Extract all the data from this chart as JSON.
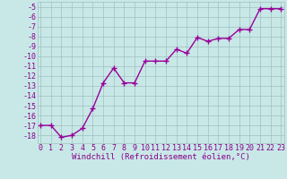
{
  "x": [
    0,
    1,
    2,
    3,
    4,
    5,
    6,
    7,
    8,
    9,
    10,
    11,
    12,
    13,
    14,
    15,
    16,
    17,
    18,
    19,
    20,
    21,
    22,
    23
  ],
  "y": [
    -17,
    -17,
    -18.2,
    -18,
    -17.3,
    -15.3,
    -12.7,
    -11.2,
    -12.7,
    -12.7,
    -10.5,
    -10.5,
    -10.5,
    -9.3,
    -9.7,
    -8.1,
    -8.5,
    -8.2,
    -8.2,
    -7.3,
    -7.3,
    -5.2,
    -5.2,
    -5.2
  ],
  "line_color": "#990099",
  "marker": "+",
  "marker_size": 4,
  "bg_color": "#c8e8e8",
  "grid_color": "#a0c0c0",
  "xlabel": "Windchill (Refroidissement éolien,°C)",
  "ylim": [
    -18.8,
    -4.5
  ],
  "xlim": [
    -0.3,
    23.3
  ],
  "yticks": [
    -5,
    -6,
    -7,
    -8,
    -9,
    -10,
    -11,
    -12,
    -13,
    -14,
    -15,
    -16,
    -17,
    -18
  ],
  "xticks": [
    0,
    1,
    2,
    3,
    4,
    5,
    6,
    7,
    8,
    9,
    10,
    11,
    12,
    13,
    14,
    15,
    16,
    17,
    18,
    19,
    20,
    21,
    22,
    23
  ],
  "tick_color": "#880088",
  "xlabel_color": "#880088",
  "xlabel_fontsize": 6.5,
  "tick_fontsize": 6.0,
  "linewidth": 1.0,
  "marker_edge_width": 1.0
}
